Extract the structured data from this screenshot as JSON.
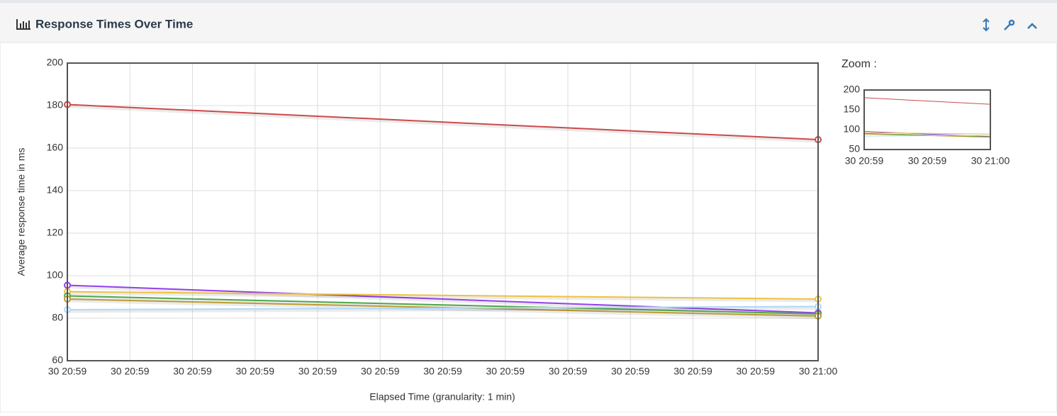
{
  "panel_title": "Response Times Over Time",
  "chart_data": [
    {
      "type": "line",
      "x_label": "Elapsed Time (granularity: 1 min)",
      "y_label": "Average response time in ms",
      "x": [
        "30 20:59",
        "30 21:00"
      ],
      "xticks": [
        "30 20:59",
        "30 20:59",
        "30 20:59",
        "30 20:59",
        "30 20:59",
        "30 20:59",
        "30 20:59",
        "30 20:59",
        "30 20:59",
        "30 20:59",
        "30 20:59",
        "30 20:59",
        "30 21:00"
      ],
      "ylim": [
        60,
        200
      ],
      "yticks": [
        60,
        80,
        100,
        120,
        140,
        160,
        180,
        200
      ],
      "grid": true,
      "series": [
        {
          "color": "#cb4b4b",
          "values": [
            180.5,
            164
          ]
        },
        {
          "color": "#9440ed",
          "values": [
            95.5,
            82.5
          ]
        },
        {
          "color": "#edc240",
          "values": [
            92.5,
            89
          ]
        },
        {
          "color": "#4da74d",
          "values": [
            90.5,
            82
          ]
        },
        {
          "color": "#bd9b33",
          "values": [
            89,
            81
          ]
        },
        {
          "color": "#afd8f8",
          "values": [
            84,
            85.5
          ]
        }
      ]
    },
    {
      "type": "zoom",
      "title": "Zoom :",
      "xticks": [
        "30 20:59",
        "30 20:59",
        "30 21:00"
      ],
      "ylim": [
        50,
        200
      ],
      "yticks": [
        50,
        100,
        150,
        200
      ]
    }
  ]
}
